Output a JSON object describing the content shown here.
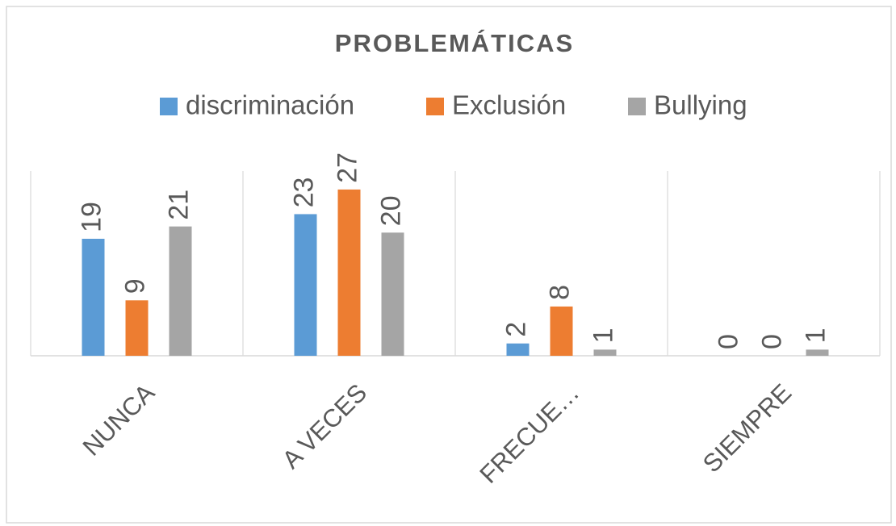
{
  "chart_data": {
    "type": "bar",
    "title": "PROBLEMÁTICAS",
    "categories": [
      "NUNCA",
      "A VECES",
      "FRECUE…",
      "SIEMPRE"
    ],
    "series": [
      {
        "name": "discriminación",
        "color": "#5b9bd5",
        "values": [
          19,
          23,
          2,
          0
        ]
      },
      {
        "name": "Exclusión",
        "color": "#ed7d31",
        "values": [
          9,
          27,
          8,
          0
        ]
      },
      {
        "name": "Bullying",
        "color": "#a5a5a5",
        "values": [
          21,
          20,
          1,
          1
        ]
      }
    ],
    "ylim": [
      0,
      30
    ],
    "legend": "top"
  }
}
